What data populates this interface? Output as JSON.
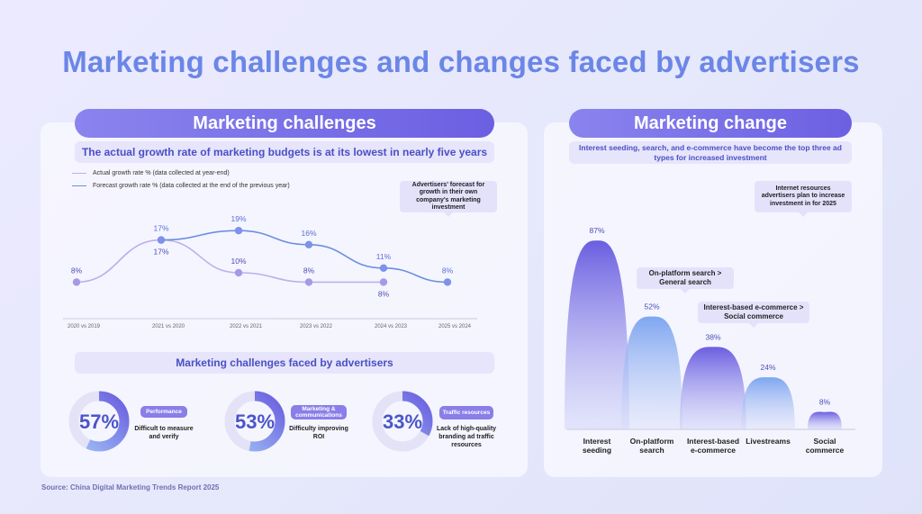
{
  "title": "Marketing challenges and changes faced by advertisers",
  "left": {
    "heading": "Marketing challenges",
    "subtitle": "The actual growth rate of marketing budgets is at its lowest in nearly five years",
    "legend": [
      {
        "label": "Actual growth rate % (data collected at year-end)",
        "color": "#b9b0ee"
      },
      {
        "label": "Forecast growth rate % (data collected at the end of the previous year)",
        "color": "#6b8fe0"
      }
    ],
    "callout": "Advertisers' forecast for growth in their own company's marketing investment",
    "challenges_heading": "Marketing challenges faced by advertisers",
    "challenges": [
      {
        "value_label": "57%",
        "badge": "Performance",
        "desc": "Difficult to measure and verify"
      },
      {
        "value_label": "53%",
        "badge": "Marketing & communications",
        "desc": "Difficulty improving ROI"
      },
      {
        "value_label": "33%",
        "badge": "Traffic resources",
        "desc": "Lack of high-quality branding ad traffic resources"
      }
    ]
  },
  "right": {
    "heading": "Marketing change",
    "subtitle": "Interest seeding, search, and e-commerce have become the top three ad types for increased investment",
    "callout_top": "Internet resources advertisers plan to increase investment in for 2025",
    "callout_search": "On-platform search > General search",
    "callout_ecom": "Interest-based e-commerce > Social commerce"
  },
  "source": "Source: China Digital Marketing Trends Report 2025",
  "chart_data": [
    {
      "type": "line",
      "categories": [
        "2020 vs 2019",
        "2021 vs 2020",
        "2022 vs 2021",
        "2023 vs 2022",
        "2024 vs 2023",
        "2025 vs 2024"
      ],
      "series": [
        {
          "name": "Actual growth rate % (data collected at year-end)",
          "values": [
            8,
            17,
            10,
            8,
            8,
            null
          ],
          "labels": [
            "8%",
            "17%",
            "10%",
            "8%",
            "8%",
            ""
          ],
          "color": "#b9b0ee"
        },
        {
          "name": "Forecast growth rate % (data collected at the end of the previous year)",
          "values": [
            null,
            17,
            19,
            16,
            11,
            8
          ],
          "labels": [
            "",
            "17%",
            "19%",
            "16%",
            "11%",
            "8%"
          ],
          "color": "#6b8fe0"
        }
      ],
      "ylim": [
        0,
        25
      ]
    },
    {
      "type": "pie",
      "values": [
        57,
        53,
        33
      ],
      "labels": [
        "57%",
        "53%",
        "33%"
      ]
    },
    {
      "type": "area",
      "categories": [
        "Interest seeding",
        "On-platform search",
        "Interest-based e-commerce",
        "Livestreams",
        "Social commerce"
      ],
      "values": [
        87,
        52,
        38,
        24,
        8
      ],
      "value_labels": [
        "87%",
        "52%",
        "38%",
        "24%",
        "8%"
      ],
      "ylim": [
        0,
        90
      ]
    }
  ]
}
